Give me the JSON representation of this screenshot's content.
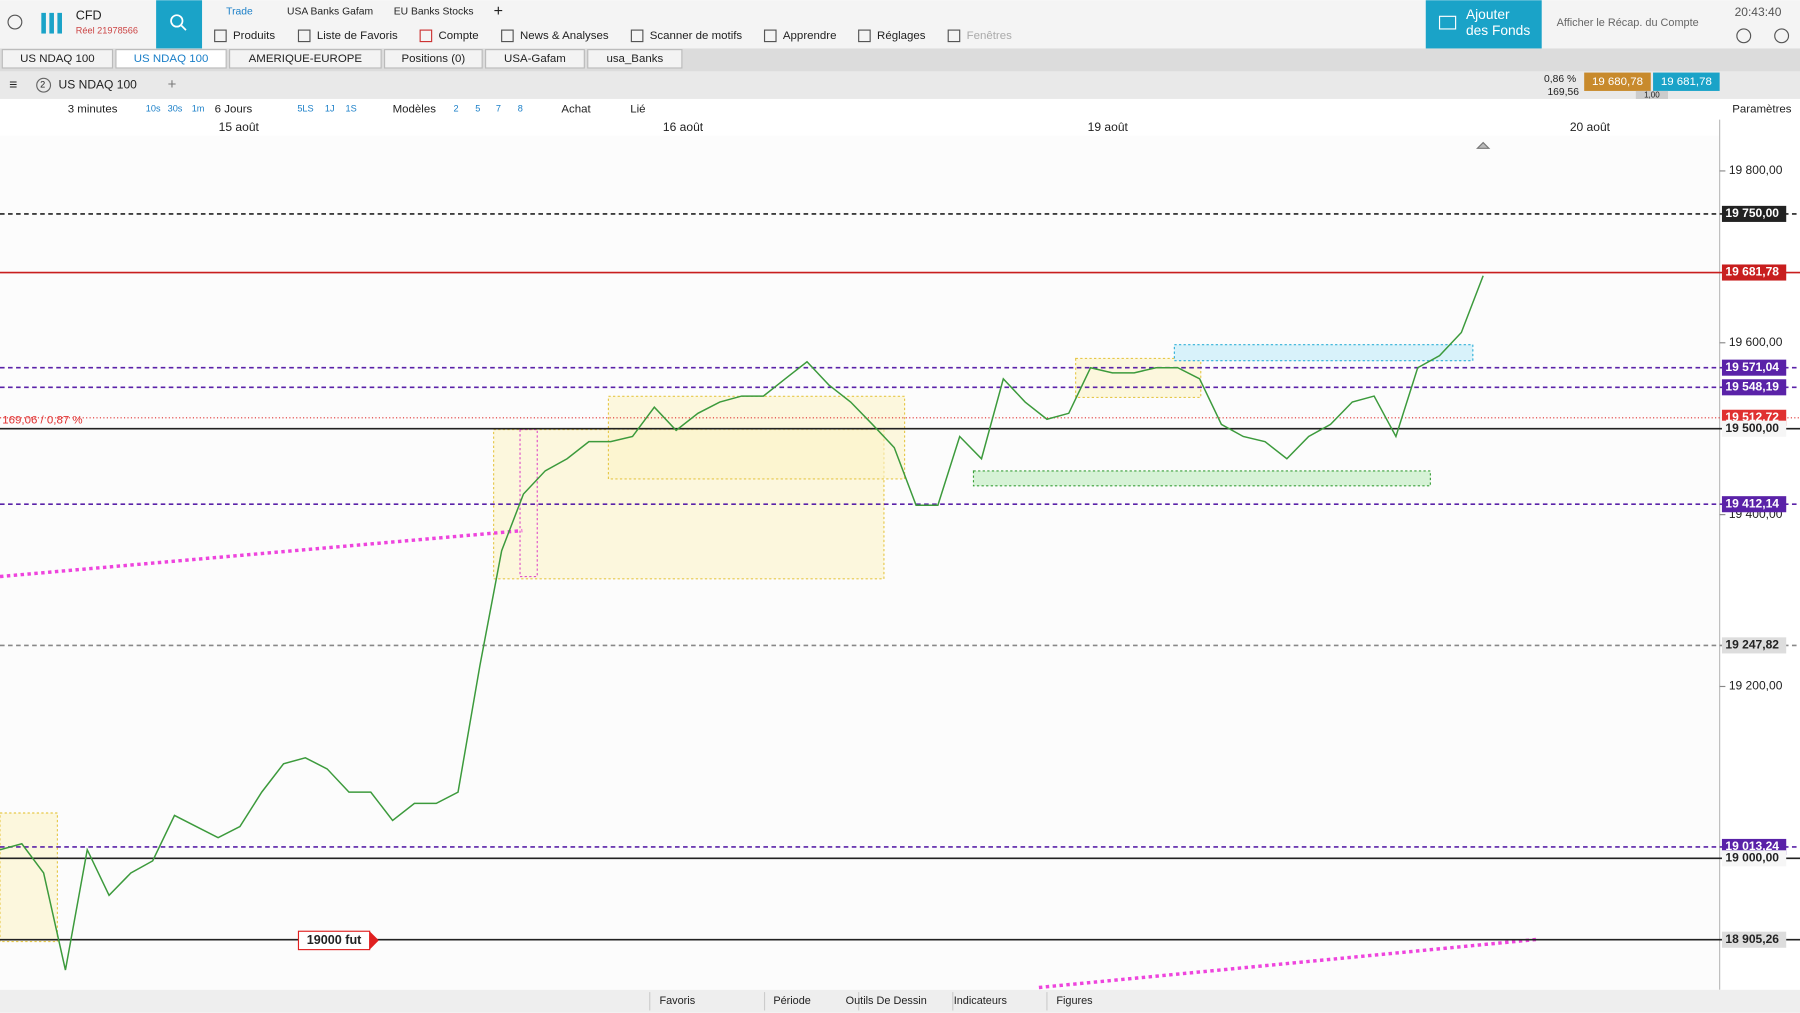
{
  "header": {
    "account_type": "CFD",
    "account_id": "Réel 21978566",
    "workspaces": [
      "Trade",
      "USA Banks Gafam",
      "EU Banks Stocks"
    ],
    "menu": [
      "Produits",
      "Liste de Favoris",
      "Compte",
      "News & Analyses",
      "Scanner de motifs",
      "Apprendre",
      "Réglages",
      "Fenêtres"
    ],
    "add_funds": [
      "Ajouter",
      "des Fonds"
    ],
    "account_summary": "Afficher le Récap. du Compte",
    "clock": "20:43:40"
  },
  "tabs": [
    "US NDAQ 100",
    "US NDAQ 100",
    "AMERIQUE-EUROPE",
    "Positions (0)",
    "USA-Gafam",
    "usa_Banks"
  ],
  "instrument": {
    "name": "US NDAQ 100",
    "change_pct": "0,86 %",
    "change_pts": "169,56",
    "bid": "19 680,78",
    "ask": "19 681,78",
    "spread": "1,00"
  },
  "toolbar": {
    "interval": "3 minutes",
    "quick_intervals": [
      "10s",
      "30s",
      "1m"
    ],
    "range": "6 Jours",
    "range_buttons": [
      "5LS",
      "1J",
      "1S"
    ],
    "templates": "Modèles",
    "counts": [
      "2",
      "5",
      "7",
      "8"
    ],
    "buy": "Achat",
    "linked": "Lié",
    "settings": "Paramètres"
  },
  "chart_data": {
    "type": "line",
    "x_labels": [
      "15 août",
      "16 août",
      "19 août",
      "20 août"
    ],
    "ylim": [
      18847,
      19841
    ],
    "yticks": [
      {
        "value": 19200,
        "label": "19 200,00"
      },
      {
        "value": 19400,
        "label": "19 400,00"
      },
      {
        "value": 19600,
        "label": "19 600,00"
      },
      {
        "value": 19800,
        "label": "19 800,00"
      }
    ],
    "levels": [
      {
        "value": 19750,
        "label": "19 750,00",
        "color": "#222",
        "style": "dashed"
      },
      {
        "value": 19681.78,
        "label": "19 681,78",
        "color": "#c81e1e",
        "style": "solid"
      },
      {
        "value": 19571.04,
        "label": "19 571,04",
        "color": "#5a22a8",
        "style": "dashed"
      },
      {
        "value": 19548.19,
        "label": "19 548,19",
        "color": "#5a22a8",
        "style": "dashed"
      },
      {
        "value": 19512.72,
        "label": "19 512,72",
        "color": "#e03030",
        "style": "dotted"
      },
      {
        "value": 19500,
        "label": "19 500,00",
        "color": "#222",
        "style": "solid"
      },
      {
        "value": 19412.14,
        "label": "19 412,14",
        "color": "#5a22a8",
        "style": "dashed"
      },
      {
        "value": 19247.82,
        "label": "19 247,82",
        "color": "#888",
        "style": "dashed"
      },
      {
        "value": 19013.24,
        "label": "19 013,24",
        "color": "#5a22a8",
        "style": "dashed"
      },
      {
        "value": 19000,
        "label": "19 000,00",
        "color": "#222",
        "style": "solid"
      },
      {
        "value": 18905.26,
        "label": "18 905,26",
        "color": "#222",
        "style": "solid"
      }
    ],
    "series": [
      {
        "name": "US NDAQ 100",
        "color": "#3c9a3c",
        "values": [
          19010,
          19017,
          18983,
          18870,
          19010,
          18957,
          18983,
          18997,
          19050,
          19037,
          19024,
          19037,
          19077,
          19110,
          19117,
          19104,
          19077,
          19077,
          19044,
          19064,
          19064,
          19077,
          19224,
          19358,
          19424,
          19451,
          19465,
          19485,
          19485,
          19491,
          19525,
          19498,
          19518,
          19531,
          19538,
          19538,
          19558,
          19578,
          19551,
          19531,
          19505,
          19478,
          19411,
          19411,
          19491,
          19465,
          19558,
          19531,
          19511,
          19518,
          19571,
          19565,
          19565,
          19571,
          19571,
          19558,
          19505,
          19491,
          19485,
          19465,
          19491,
          19505,
          19531,
          19538,
          19491,
          19571,
          19585,
          19612,
          19678
        ]
      }
    ],
    "annotations": [
      "169,06 / 0,87 %",
      "19000 fut"
    ]
  },
  "footer": [
    "Favoris",
    "Période",
    "Outils De Dessin",
    "Indicateurs",
    "Figures"
  ]
}
